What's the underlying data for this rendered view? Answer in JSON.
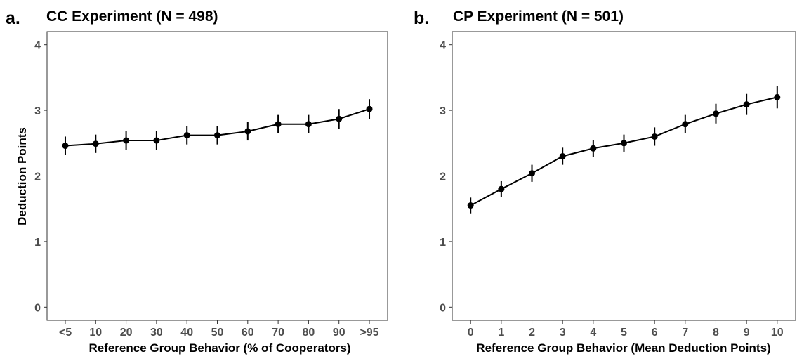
{
  "chart_data": [
    {
      "type": "line",
      "panel_label": "a.",
      "title": "CC Experiment (N = 498)",
      "xlabel": "Reference Group Behavior (% of Cooperators)",
      "ylabel": "Deduction Points",
      "categories": [
        "<5",
        "10",
        "20",
        "30",
        "40",
        "50",
        "60",
        "70",
        "80",
        "90",
        ">95"
      ],
      "values": [
        2.46,
        2.49,
        2.54,
        2.54,
        2.62,
        2.62,
        2.68,
        2.79,
        2.79,
        2.87,
        3.02
      ],
      "error_low": [
        2.32,
        2.35,
        2.4,
        2.4,
        2.48,
        2.48,
        2.54,
        2.65,
        2.65,
        2.72,
        2.87
      ],
      "error_high": [
        2.6,
        2.63,
        2.68,
        2.68,
        2.76,
        2.76,
        2.82,
        2.93,
        2.93,
        3.02,
        3.17
      ],
      "ylim": [
        -0.2,
        4.2
      ],
      "yticks": [
        0,
        1,
        2,
        3,
        4
      ],
      "grid": false,
      "color": "#000000"
    },
    {
      "type": "line",
      "panel_label": "b.",
      "title": "CP Experiment (N = 501)",
      "xlabel": "Reference Group Behavior (Mean Deduction Points)",
      "ylabel": "",
      "categories": [
        "0",
        "1",
        "2",
        "3",
        "4",
        "5",
        "6",
        "7",
        "8",
        "9",
        "10"
      ],
      "values": [
        1.55,
        1.8,
        2.04,
        2.3,
        2.42,
        2.5,
        2.6,
        2.79,
        2.95,
        3.09,
        3.2
      ],
      "error_low": [
        1.43,
        1.68,
        1.91,
        2.17,
        2.29,
        2.37,
        2.46,
        2.65,
        2.8,
        2.93,
        3.03
      ],
      "error_high": [
        1.67,
        1.92,
        2.17,
        2.43,
        2.55,
        2.63,
        2.74,
        2.93,
        3.1,
        3.25,
        3.37
      ],
      "ylim": [
        -0.2,
        4.2
      ],
      "yticks": [
        0,
        1,
        2,
        3,
        4
      ],
      "grid": false,
      "color": "#000000"
    }
  ]
}
